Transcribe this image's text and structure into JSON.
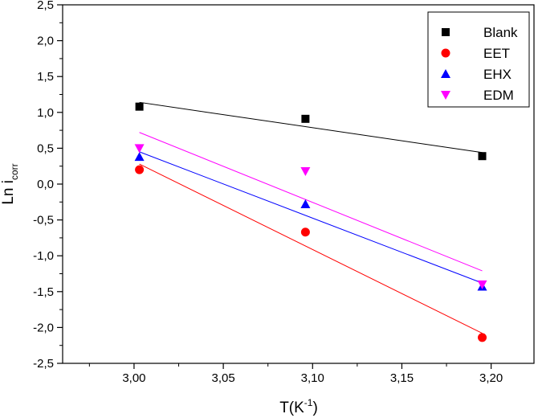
{
  "chart_data": {
    "type": "scatter",
    "xlabel": {
      "base": "T(K",
      "sup": "-1",
      "end": ")"
    },
    "ylabel": {
      "base": "Ln i",
      "sub": "corr"
    },
    "xlim": [
      2.96,
      3.224
    ],
    "ylim": [
      -2.5,
      2.5
    ],
    "xticks": [
      3.0,
      3.05,
      3.1,
      3.15,
      3.2
    ],
    "xtick_labels": [
      "3,00",
      "3,05",
      "3,10",
      "3,15",
      "3,20"
    ],
    "yticks": [
      2.5,
      2.0,
      1.5,
      1.0,
      0.5,
      0.0,
      -0.5,
      -1.0,
      -1.5,
      -2.0,
      -2.5
    ],
    "ytick_labels": [
      "2,5",
      "2,0",
      "1,5",
      "1,0",
      "0,5",
      "0,0",
      "-0,5",
      "-1,0",
      "-1,5",
      "-2,0",
      "-2,5"
    ],
    "grid": false,
    "legend_position": "top-right",
    "series": [
      {
        "name": "Blank",
        "color": "#000000",
        "marker": "square",
        "x": [
          3.003,
          3.096,
          3.195
        ],
        "y": [
          1.08,
          0.91,
          0.39
        ],
        "fit": {
          "x": [
            3.003,
            3.195
          ],
          "y": [
            1.14,
            0.44
          ]
        }
      },
      {
        "name": "EET",
        "color": "#ff0000",
        "marker": "circle",
        "x": [
          3.003,
          3.096,
          3.195
        ],
        "y": [
          0.2,
          -0.67,
          -2.14
        ],
        "fit": {
          "x": [
            3.003,
            3.195
          ],
          "y": [
            0.28,
            -2.08
          ]
        }
      },
      {
        "name": "EHX",
        "color": "#0000ff",
        "marker": "triangle-up",
        "x": [
          3.003,
          3.096,
          3.195
        ],
        "y": [
          0.38,
          -0.28,
          -1.43
        ],
        "fit": {
          "x": [
            3.003,
            3.195
          ],
          "y": [
            0.45,
            -1.38
          ]
        }
      },
      {
        "name": "EDM",
        "color": "#ff00ff",
        "marker": "triangle-down",
        "x": [
          3.003,
          3.096,
          3.195
        ],
        "y": [
          0.5,
          0.18,
          -1.4
        ],
        "fit": {
          "x": [
            3.003,
            3.195
          ],
          "y": [
            0.72,
            -1.21
          ]
        }
      }
    ]
  }
}
